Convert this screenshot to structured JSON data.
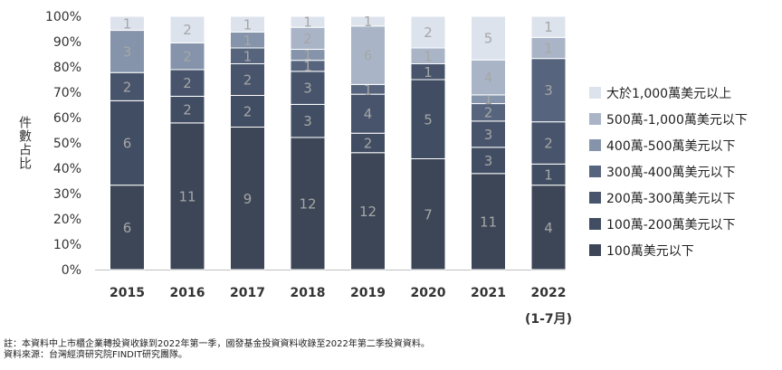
{
  "chart_data": {
    "type": "bar",
    "stacked": true,
    "normalized": true,
    "ylabel": "件數占比",
    "ylim": [
      0,
      100
    ],
    "yticks": [
      "0%",
      "10%",
      "20%",
      "30%",
      "40%",
      "50%",
      "60%",
      "70%",
      "80%",
      "90%",
      "100%"
    ],
    "grid": false,
    "legend_position": "right",
    "categories": [
      "2015",
      "2016",
      "2017",
      "2018",
      "2019",
      "2020",
      "2021",
      "2022"
    ],
    "category_sublabels": [
      "",
      "",
      "",
      "",
      "",
      "",
      "",
      "(1-7月)"
    ],
    "series": [
      {
        "name": "100萬美元以下",
        "color": "#3c4657",
        "values": [
          6,
          11,
          9,
          12,
          12,
          7,
          11,
          4
        ]
      },
      {
        "name": "100萬-200萬美元以下",
        "color": "#414d62",
        "values": [
          6,
          2,
          2,
          3,
          2,
          5,
          3,
          1
        ]
      },
      {
        "name": "200萬-300萬美元以下",
        "color": "#47546b",
        "values": [
          2,
          2,
          2,
          3,
          4,
          1,
          3,
          2
        ]
      },
      {
        "name": "300萬-400萬美元以下",
        "color": "#56647d",
        "values": [
          0,
          0,
          1,
          1,
          1,
          0,
          2,
          3
        ]
      },
      {
        "name": "400萬-500萬美元以下",
        "color": "#8594ab",
        "values": [
          3,
          2,
          1,
          1,
          0,
          0,
          1,
          0
        ]
      },
      {
        "name": "500萬-1,000萬美元以下",
        "color": "#a9b5c7",
        "values": [
          0,
          0,
          0,
          2,
          6,
          1,
          4,
          1
        ]
      },
      {
        "name": "大於1,000萬美元以上",
        "color": "#dde3ed",
        "values": [
          1,
          2,
          1,
          1,
          1,
          2,
          5,
          1
        ]
      }
    ]
  },
  "notes": {
    "line1": "註：本資料中上市櫃企業轉投資收錄到2022年第一季，國發基金投資資料收錄至2022年第二季投資資料。",
    "line2": "資料來源：台灣經濟研究院FINDIT研究團隊。"
  }
}
